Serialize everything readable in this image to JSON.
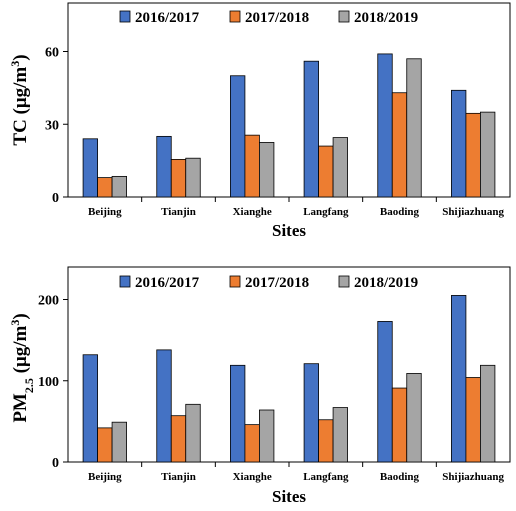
{
  "series_colors": [
    "#4472C4",
    "#ED7D31",
    "#A5A5A5"
  ],
  "chart_data": [
    {
      "type": "bar",
      "categories": [
        "Beijing",
        "Tianjin",
        "Xianghe",
        "Langfang",
        "Baoding",
        "Shijiazhuang"
      ],
      "series": [
        {
          "name": "2016/2017",
          "values": [
            24,
            25,
            50,
            56,
            59,
            44
          ]
        },
        {
          "name": "2017/2018",
          "values": [
            8,
            15.5,
            25.5,
            21,
            43,
            34.5
          ]
        },
        {
          "name": "2018/2019",
          "values": [
            8.5,
            16,
            22.5,
            24.5,
            57,
            35
          ]
        }
      ],
      "xlabel": "Sites",
      "ylabel_main": "TC (μg/m",
      "ylabel_sup": "3",
      "ylabel_tail": ")",
      "ylim": [
        0,
        80
      ],
      "yticks": [
        "0",
        "30",
        "60"
      ],
      "ytick_values": [
        0,
        30,
        60
      ],
      "legend_position": "top",
      "grid": false
    },
    {
      "type": "bar",
      "categories": [
        "Beijing",
        "Tianjin",
        "Xianghe",
        "Langfang",
        "Baoding",
        "Shijiazhuang"
      ],
      "series": [
        {
          "name": "2016/2017",
          "values": [
            132,
            138,
            119,
            121,
            173,
            205
          ]
        },
        {
          "name": "2017/2018",
          "values": [
            42,
            57,
            46,
            52,
            91,
            104
          ]
        },
        {
          "name": "2018/2019",
          "values": [
            49,
            71,
            64,
            67,
            109,
            119
          ]
        }
      ],
      "xlabel": "Sites",
      "ylabel_main": "PM",
      "ylabel_sub": "2.5",
      "ylabel_tail": " (μg/m",
      "ylabel_sup": "3",
      "ylabel_tail2": ")",
      "ylim": [
        0,
        240
      ],
      "yticks": [
        "0",
        "100",
        "200"
      ],
      "ytick_values": [
        0,
        100,
        200
      ],
      "legend_position": "top",
      "grid": false
    }
  ]
}
